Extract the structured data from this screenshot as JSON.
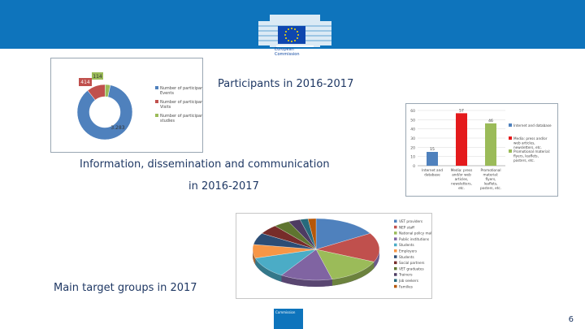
{
  "header": {
    "logo_text_1": "European",
    "logo_text_2": "Commission"
  },
  "titles": {
    "participants": "Participants in 2016-2017",
    "info_line1": "Information, dissemination and communication",
    "info_line2": "in 2016-2017",
    "targets": "Main target groups in 2017"
  },
  "chart_data": [
    {
      "type": "pie",
      "categories": [
        "Number of participants Events",
        "Number of participants Visits",
        "Number of participants studies"
      ],
      "values": [
        3283,
        414,
        114
      ],
      "labels": [
        "3.283",
        "414",
        "114"
      ],
      "colors": [
        "#4f81bd",
        "#c0504d",
        "#9bbb59"
      ]
    },
    {
      "type": "bar",
      "categories": [
        "Internet and database",
        "Media: press and/or web articles, newsletters, etc.",
        "Promotional material: flyers, leaflets, posters, etc."
      ],
      "values": [
        15,
        57,
        46
      ],
      "ylim": [
        0,
        60
      ],
      "yticks": [
        "0",
        "10",
        "20",
        "30",
        "40",
        "50",
        "60"
      ],
      "legend": [
        "Internet and database",
        "Media: press and/or web articles, newsletters, etc.",
        "Promotional material: flyers, leaflets, posters, etc."
      ],
      "colors": [
        "#4f81bd",
        "#e41a1c",
        "#9bbb59"
      ]
    },
    {
      "type": "pie",
      "categories": [
        "VET providers",
        "NEP staff",
        "National policy makers",
        "Public institutions",
        "Students",
        "Employers",
        "Students",
        "Social partners",
        "VET graduates",
        "Trainers",
        "Job seekers",
        "Families"
      ],
      "values": [
        16,
        15,
        14,
        13,
        11,
        7,
        6,
        5,
        4,
        3,
        2,
        2
      ],
      "colors": [
        "#4f81bd",
        "#c0504d",
        "#9bbb59",
        "#8064a2",
        "#4bacc6",
        "#f79646",
        "#2c4d75",
        "#772c2a",
        "#5f7530",
        "#4d3b62",
        "#276a7c",
        "#b65708"
      ]
    }
  ],
  "footer": {
    "logo_text": "Commission",
    "page_number": "6"
  }
}
